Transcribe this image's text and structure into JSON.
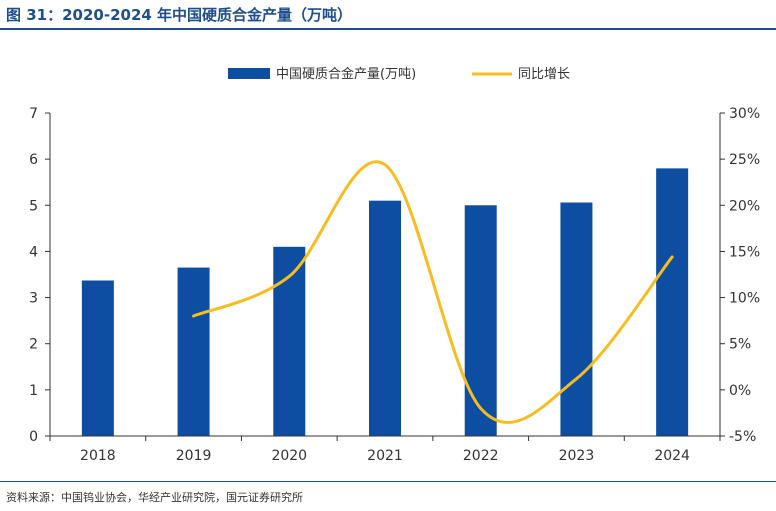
{
  "figure": {
    "title": "图 31：2020-2024 年中国硬质合金产量（万吨）",
    "source": "资料来源：中国钨业协会，华经产业研究院，国元证券研究所"
  },
  "chart_data": {
    "type": "bar",
    "categories": [
      "2018",
      "2019",
      "2020",
      "2021",
      "2022",
      "2023",
      "2024"
    ],
    "series": [
      {
        "name": "中国硬质合金产量(万吨)",
        "type": "bar",
        "axis": "left",
        "color": "#0d4ea2",
        "values": [
          3.37,
          3.65,
          4.1,
          5.1,
          5.0,
          5.06,
          5.8
        ]
      },
      {
        "name": "同比增长",
        "type": "line",
        "axis": "right",
        "color": "#f5bd1f",
        "values": [
          null,
          8.0,
          12.3,
          24.4,
          -2.0,
          1.2,
          14.4
        ]
      }
    ],
    "y_left": {
      "min": 0,
      "max": 7,
      "ticks": [
        "0",
        "1",
        "2",
        "3",
        "4",
        "5",
        "6",
        "7"
      ]
    },
    "y_right": {
      "min": -5,
      "max": 30,
      "ticks": [
        "-5%",
        "0%",
        "5%",
        "10%",
        "15%",
        "20%",
        "25%",
        "30%"
      ]
    },
    "legend_position": "top-center",
    "grid": false
  }
}
